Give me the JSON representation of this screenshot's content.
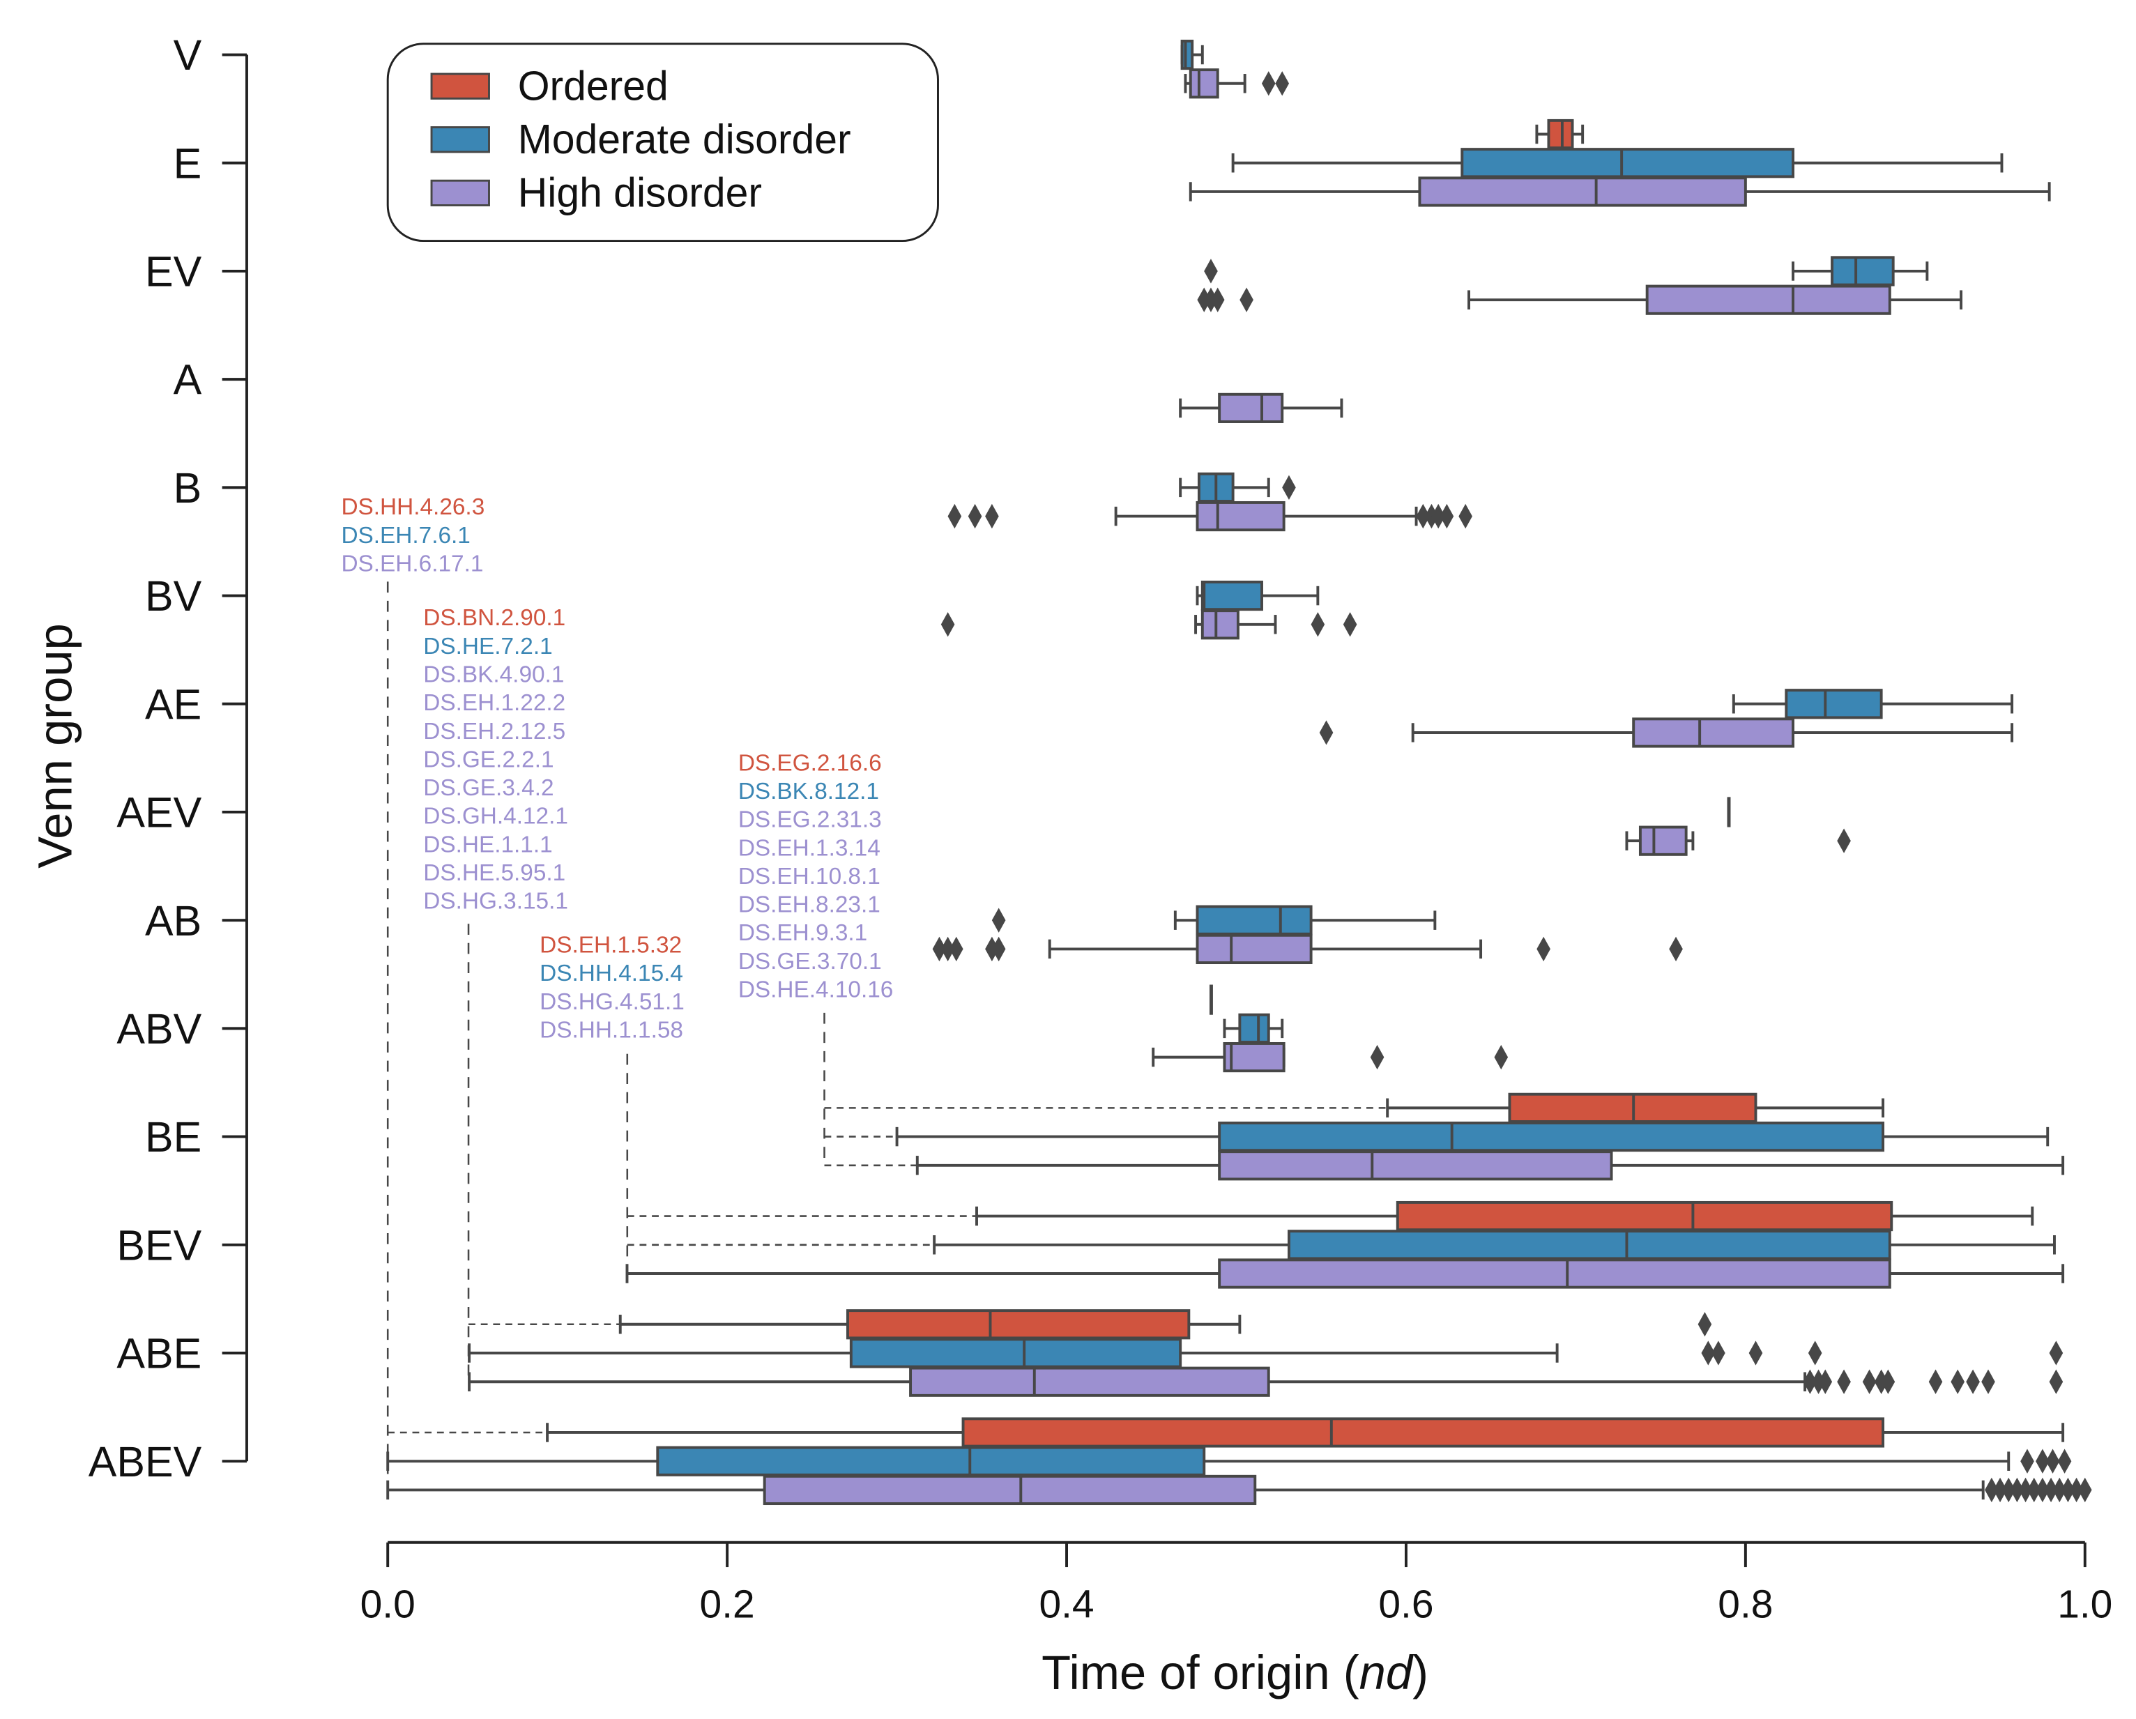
{
  "chart_data": {
    "type": "boxplot",
    "orientation": "horizontal",
    "xlabel": {
      "prefix": "Time of origin (",
      "italic": "nd",
      "suffix": ")"
    },
    "ylabel": "Venn group",
    "xlim": [
      0.0,
      1.0
    ],
    "xticks": [
      "0.0",
      "0.2",
      "0.4",
      "0.6",
      "0.8",
      "1.0"
    ],
    "grid": false,
    "legend": {
      "placement": "top-left",
      "entries": [
        {
          "name": "Ordered",
          "color": "#d0543f"
        },
        {
          "name": "Moderate disorder",
          "color": "#3b86b4"
        },
        {
          "name": "High disorder",
          "color": "#9c90d0"
        }
      ]
    },
    "line_color": "#474747",
    "categories": [
      "V",
      "E",
      "EV",
      "A",
      "B",
      "BV",
      "AE",
      "AEV",
      "AB",
      "ABV",
      "BE",
      "BEV",
      "ABE",
      "ABEV"
    ],
    "boxes": {
      "V": {
        "moderate": {
          "lo": 0.468,
          "q1": 0.468,
          "med": 0.47,
          "q3": 0.474,
          "hi": 0.48,
          "outliers": []
        },
        "high": {
          "lo": 0.47,
          "q1": 0.473,
          "med": 0.478,
          "q3": 0.489,
          "hi": 0.505,
          "outliers": [
            0.519,
            0.527
          ]
        }
      },
      "E": {
        "ordered": {
          "lo": 0.677,
          "q1": 0.684,
          "med": 0.692,
          "q3": 0.698,
          "hi": 0.704,
          "outliers": []
        },
        "moderate": {
          "lo": 0.498,
          "q1": 0.633,
          "med": 0.727,
          "q3": 0.828,
          "hi": 0.951,
          "outliers": []
        },
        "high": {
          "lo": 0.473,
          "q1": 0.608,
          "med": 0.712,
          "q3": 0.8,
          "hi": 0.979,
          "outliers": []
        }
      },
      "EV": {
        "moderate": {
          "lo": 0.828,
          "q1": 0.851,
          "med": 0.865,
          "q3": 0.887,
          "hi": 0.907,
          "outliers": [
            0.485
          ]
        },
        "high": {
          "lo": 0.637,
          "q1": 0.742,
          "med": 0.828,
          "q3": 0.885,
          "hi": 0.927,
          "outliers": [
            0.481,
            0.485,
            0.489,
            0.506
          ]
        }
      },
      "A": {
        "high": {
          "lo": 0.467,
          "q1": 0.49,
          "med": 0.515,
          "q3": 0.527,
          "hi": 0.562,
          "outliers": []
        }
      },
      "B": {
        "moderate": {
          "lo": 0.467,
          "q1": 0.478,
          "med": 0.488,
          "q3": 0.498,
          "hi": 0.519,
          "outliers": [
            0.531
          ]
        },
        "high": {
          "lo": 0.429,
          "q1": 0.477,
          "med": 0.489,
          "q3": 0.528,
          "hi": 0.606,
          "outliers": [
            0.334,
            0.346,
            0.356,
            0.61,
            0.615,
            0.619,
            0.624,
            0.635
          ]
        }
      },
      "BV": {
        "moderate": {
          "lo": 0.477,
          "q1": 0.48,
          "med": 0.481,
          "q3": 0.515,
          "hi": 0.548,
          "outliers": []
        },
        "high": {
          "lo": 0.476,
          "q1": 0.48,
          "med": 0.488,
          "q3": 0.501,
          "hi": 0.523,
          "outliers": [
            0.33,
            0.548,
            0.567
          ]
        }
      },
      "AE": {
        "moderate": {
          "lo": 0.793,
          "q1": 0.824,
          "med": 0.847,
          "q3": 0.88,
          "hi": 0.957,
          "outliers": []
        },
        "high": {
          "lo": 0.604,
          "q1": 0.734,
          "med": 0.773,
          "q3": 0.828,
          "hi": 0.957,
          "outliers": [
            0.553
          ]
        }
      },
      "AEV": {
        "moderate": {
          "lo": 0.79,
          "q1": 0.79,
          "med": 0.79,
          "q3": 0.79,
          "hi": 0.79,
          "outliers": []
        },
        "high": {
          "lo": 0.73,
          "q1": 0.738,
          "med": 0.746,
          "q3": 0.765,
          "hi": 0.769,
          "outliers": [
            0.858
          ]
        }
      },
      "AB": {
        "moderate": {
          "lo": 0.464,
          "q1": 0.477,
          "med": 0.526,
          "q3": 0.544,
          "hi": 0.617,
          "outliers": [
            0.36
          ]
        },
        "high": {
          "lo": 0.39,
          "q1": 0.477,
          "med": 0.497,
          "q3": 0.544,
          "hi": 0.644,
          "outliers": [
            0.325,
            0.33,
            0.335,
            0.356,
            0.36,
            0.681,
            0.759
          ]
        }
      },
      "ABV": {
        "ordered": {
          "lo": 0.485,
          "q1": 0.485,
          "med": 0.485,
          "q3": 0.485,
          "hi": 0.485,
          "outliers": []
        },
        "moderate": {
          "lo": 0.493,
          "q1": 0.502,
          "med": 0.513,
          "q3": 0.519,
          "hi": 0.527,
          "outliers": []
        },
        "high": {
          "lo": 0.451,
          "q1": 0.493,
          "med": 0.497,
          "q3": 0.528,
          "hi": 0.528,
          "outliers": [
            0.583,
            0.656
          ]
        }
      },
      "BE": {
        "ordered": {
          "lo": 0.589,
          "q1": 0.661,
          "med": 0.734,
          "q3": 0.806,
          "hi": 0.881,
          "outliers": []
        },
        "moderate": {
          "lo": 0.3,
          "q1": 0.49,
          "med": 0.627,
          "q3": 0.881,
          "hi": 0.978,
          "outliers": []
        },
        "high": {
          "lo": 0.312,
          "q1": 0.49,
          "med": 0.58,
          "q3": 0.721,
          "hi": 0.987,
          "outliers": []
        }
      },
      "BEV": {
        "ordered": {
          "lo": 0.347,
          "q1": 0.595,
          "med": 0.769,
          "q3": 0.886,
          "hi": 0.969,
          "outliers": []
        },
        "moderate": {
          "lo": 0.322,
          "q1": 0.531,
          "med": 0.73,
          "q3": 0.885,
          "hi": 0.982,
          "outliers": []
        },
        "high": {
          "lo": 0.141,
          "q1": 0.49,
          "med": 0.695,
          "q3": 0.885,
          "hi": 0.987,
          "outliers": []
        }
      },
      "ABE": {
        "ordered": {
          "lo": 0.137,
          "q1": 0.271,
          "med": 0.355,
          "q3": 0.472,
          "hi": 0.502,
          "outliers": [
            0.776
          ]
        },
        "moderate": {
          "lo": 0.048,
          "q1": 0.273,
          "med": 0.375,
          "q3": 0.467,
          "hi": 0.689,
          "outliers": [
            0.778,
            0.784,
            0.806,
            0.841,
            0.983
          ]
        },
        "high": {
          "lo": 0.048,
          "q1": 0.308,
          "med": 0.381,
          "q3": 0.519,
          "hi": 0.835,
          "outliers": [
            0.838,
            0.843,
            0.847,
            0.858,
            0.873,
            0.88,
            0.884,
            0.912,
            0.925,
            0.934,
            0.943,
            0.983
          ]
        }
      },
      "ABEV": {
        "ordered": {
          "lo": 0.094,
          "q1": 0.339,
          "med": 0.556,
          "q3": 0.881,
          "hi": 0.987,
          "outliers": []
        },
        "moderate": {
          "lo": 0.0,
          "q1": 0.159,
          "med": 0.343,
          "q3": 0.481,
          "hi": 0.955,
          "outliers": [
            0.966,
            0.975,
            0.981,
            0.988
          ]
        },
        "high": {
          "lo": 0.0,
          "q1": 0.222,
          "med": 0.373,
          "q3": 0.511,
          "hi": 0.94,
          "outliers": [
            0.945,
            0.95,
            0.955,
            0.96,
            0.965,
            0.97,
            0.975,
            0.98,
            0.985,
            0.99,
            0.995,
            1.0
          ]
        }
      }
    },
    "annotations": [
      {
        "category": "ABEV",
        "labels": [
          {
            "text": "DS.HH.4.26.3",
            "hue": "ordered"
          },
          {
            "text": "DS.EH.7.6.1",
            "hue": "moderate"
          },
          {
            "text": "DS.EH.6.17.1",
            "hue": "high"
          }
        ]
      },
      {
        "category": "ABE",
        "labels": [
          {
            "text": "DS.BN.2.90.1",
            "hue": "ordered"
          },
          {
            "text": "DS.HE.7.2.1",
            "hue": "moderate"
          },
          {
            "text": "DS.BK.4.90.1",
            "hue": "high"
          },
          {
            "text": "DS.EH.1.22.2",
            "hue": "high"
          },
          {
            "text": "DS.EH.2.12.5",
            "hue": "high"
          },
          {
            "text": "DS.GE.2.2.1",
            "hue": "high"
          },
          {
            "text": "DS.GE.3.4.2",
            "hue": "high"
          },
          {
            "text": "DS.GH.4.12.1",
            "hue": "high"
          },
          {
            "text": "DS.HE.1.1.1",
            "hue": "high"
          },
          {
            "text": "DS.HE.5.95.1",
            "hue": "high"
          },
          {
            "text": "DS.HG.3.15.1",
            "hue": "high"
          }
        ]
      },
      {
        "category": "BEV",
        "labels": [
          {
            "text": "DS.EH.1.5.32",
            "hue": "ordered"
          },
          {
            "text": "DS.HH.4.15.4",
            "hue": "moderate"
          },
          {
            "text": "DS.HG.4.51.1",
            "hue": "high"
          },
          {
            "text": "DS.HH.1.1.58",
            "hue": "high"
          }
        ]
      },
      {
        "category": "BE",
        "labels": [
          {
            "text": "DS.EG.2.16.6",
            "hue": "ordered"
          },
          {
            "text": "DS.BK.8.12.1",
            "hue": "moderate"
          },
          {
            "text": "DS.EG.2.31.3",
            "hue": "high"
          },
          {
            "text": "DS.EH.1.3.14",
            "hue": "high"
          },
          {
            "text": "DS.EH.10.8.1",
            "hue": "high"
          },
          {
            "text": "DS.EH.8.23.1",
            "hue": "high"
          },
          {
            "text": "DS.EH.9.3.1",
            "hue": "high"
          },
          {
            "text": "DS.GE.3.70.1",
            "hue": "high"
          },
          {
            "text": "DS.HE.4.10.16",
            "hue": "high"
          }
        ]
      }
    ]
  }
}
